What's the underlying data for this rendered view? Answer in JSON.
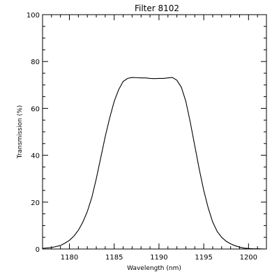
{
  "chart_data": {
    "type": "line",
    "title": "Filter 8102",
    "xlabel": "Wavelength (nm)",
    "ylabel": "Transmission (%)",
    "xlim": [
      1177,
      1202
    ],
    "ylim": [
      0,
      100
    ],
    "x_ticks": [
      1180,
      1185,
      1190,
      1195,
      1200
    ],
    "y_ticks": [
      0,
      20,
      40,
      60,
      80,
      100
    ],
    "grid": false,
    "legend": "none",
    "line_color": "#000000",
    "series": [
      {
        "x": [
          1177.0,
          1178.0,
          1179.0,
          1179.5,
          1180.0,
          1180.5,
          1181.0,
          1181.5,
          1182.0,
          1182.5,
          1183.0,
          1183.5,
          1184.0,
          1184.5,
          1185.0,
          1185.5,
          1186.0,
          1186.5,
          1187.0,
          1187.5,
          1188.0,
          1188.5,
          1189.0,
          1189.5,
          1190.0,
          1190.5,
          1191.0,
          1191.5,
          1192.0,
          1192.5,
          1193.0,
          1193.5,
          1194.0,
          1194.5,
          1195.0,
          1195.5,
          1196.0,
          1196.5,
          1197.0,
          1197.5,
          1198.0,
          1198.5,
          1199.0,
          1199.5,
          1200.0,
          1200.5,
          1201.0,
          1202.0
        ],
        "values": [
          0.3,
          0.6,
          1.5,
          2.5,
          3.7,
          5.5,
          8.0,
          11.5,
          16.0,
          22.0,
          30.0,
          39.0,
          48.0,
          56.0,
          63.0,
          68.0,
          71.5,
          72.8,
          73.2,
          73.1,
          73.0,
          73.0,
          72.8,
          72.7,
          72.8,
          72.8,
          73.0,
          73.2,
          72.0,
          69.0,
          63.0,
          54.0,
          44.0,
          34.0,
          25.0,
          17.5,
          11.5,
          7.5,
          5.0,
          3.3,
          2.2,
          1.4,
          0.8,
          0.4,
          0.2,
          0.1,
          0.1,
          0.0
        ]
      }
    ]
  }
}
